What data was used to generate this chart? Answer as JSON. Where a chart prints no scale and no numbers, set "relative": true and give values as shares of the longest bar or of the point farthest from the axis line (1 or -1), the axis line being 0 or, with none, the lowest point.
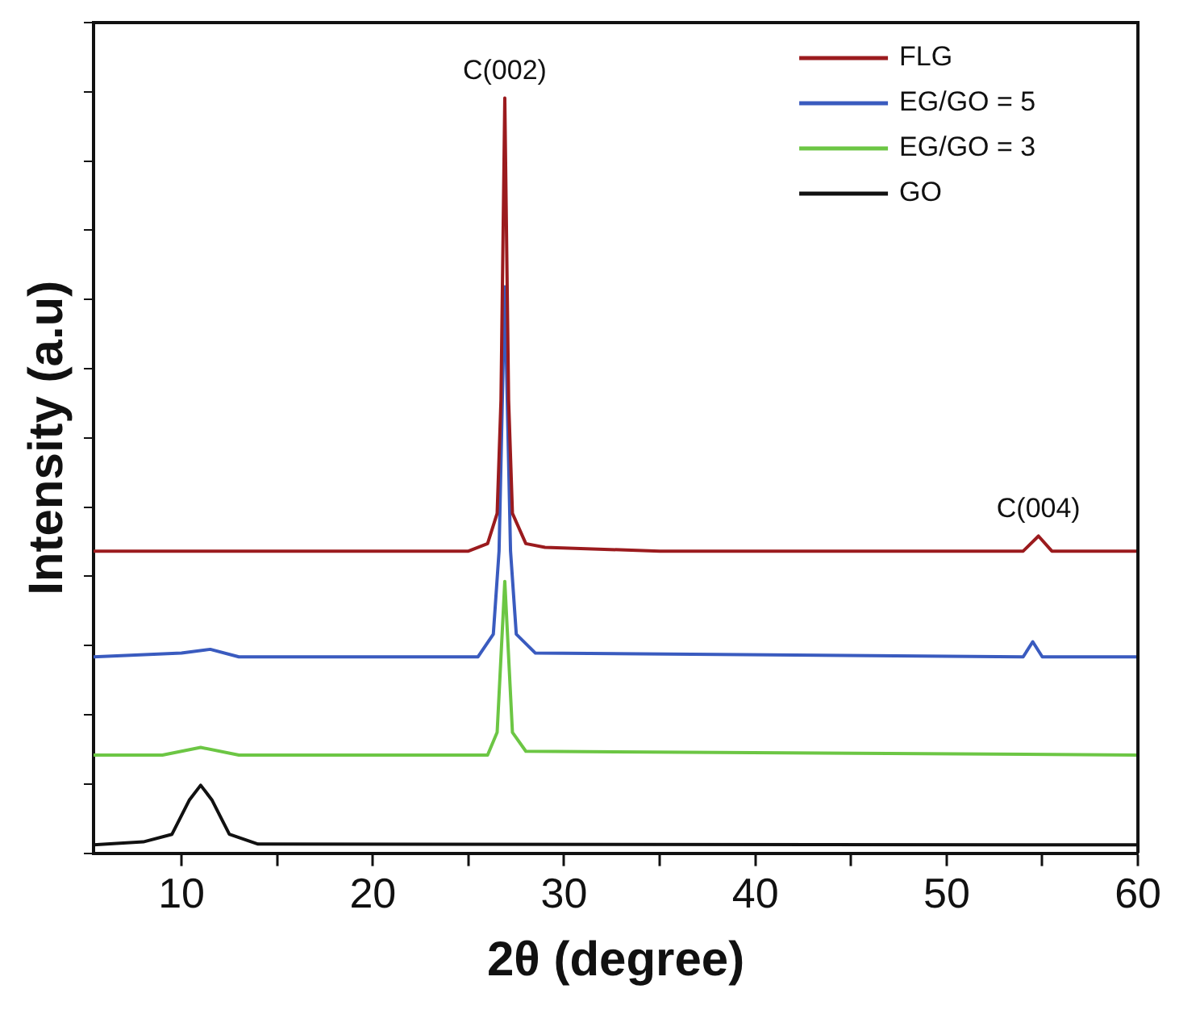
{
  "chart_data": {
    "type": "line",
    "relative": true,
    "xlabel": "2θ (degree)",
    "ylabel": "Intensity (a.u)",
    "xlim": [
      5.4,
      60
    ],
    "xticks": [
      10,
      {
        "value": 15,
        "label": null
      },
      20,
      {
        "value": 25,
        "label": null
      },
      30,
      {
        "value": 35,
        "label": null
      },
      40,
      {
        "value": 45,
        "label": null
      },
      50,
      {
        "value": 55,
        "label": null
      },
      60
    ],
    "tick_labels": "x",
    "legend": "top right",
    "grid": false,
    "marker": "none",
    "line_style": "solid",
    "annotations": [
      {
        "text": "C(002)",
        "x": 26.9,
        "y": 1.0
      },
      {
        "text": "C(004)",
        "x": 54.8,
        "y": 0.42
      }
    ],
    "series": [
      {
        "name": "FLG",
        "color": "#9b1b1e",
        "x": [
          5.4,
          25,
          26,
          26.5,
          26.7,
          26.9,
          27.1,
          27.3,
          28,
          29,
          35,
          54,
          54.8,
          55.5,
          60
        ],
        "values": [
          0.4,
          0.4,
          0.41,
          0.45,
          0.6,
          1.0,
          0.6,
          0.45,
          0.41,
          0.405,
          0.4,
          0.4,
          0.42,
          0.4,
          0.4
        ]
      },
      {
        "name": "EG/GO = 5",
        "color": "#3a5bbf",
        "x": [
          5.4,
          10,
          11.5,
          13,
          25.5,
          26.3,
          26.6,
          26.9,
          27.2,
          27.5,
          28.5,
          54,
          54.5,
          55,
          60
        ],
        "values": [
          0.26,
          0.265,
          0.27,
          0.26,
          0.26,
          0.29,
          0.4,
          0.75,
          0.4,
          0.29,
          0.265,
          0.26,
          0.28,
          0.26,
          0.26
        ]
      },
      {
        "name": "EG/GO = 3",
        "color": "#6cc644",
        "x": [
          5.4,
          9,
          11,
          13,
          26,
          26.5,
          26.9,
          27.3,
          28,
          60
        ],
        "values": [
          0.13,
          0.13,
          0.14,
          0.13,
          0.13,
          0.16,
          0.36,
          0.16,
          0.135,
          0.13
        ]
      },
      {
        "name": "GO",
        "color": "#111111",
        "x": [
          5.4,
          8,
          9.5,
          10.4,
          11,
          11.6,
          12.5,
          14,
          60
        ],
        "values": [
          0.011,
          0.015,
          0.025,
          0.07,
          0.09,
          0.07,
          0.025,
          0.012,
          0.011
        ]
      }
    ]
  }
}
